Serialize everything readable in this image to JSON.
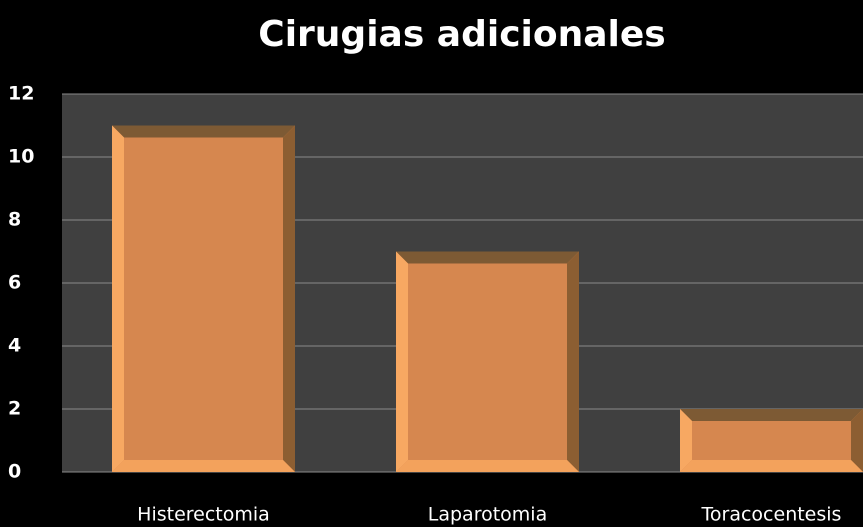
{
  "chart_data": {
    "type": "bar",
    "title": "Cirugias adicionales",
    "categories": [
      "Histerectomia",
      "Laparotomia",
      "Toracocentesis"
    ],
    "values": [
      11,
      7,
      2
    ],
    "color": "#d6874f",
    "ylim": [
      0,
      12
    ],
    "yticks": [
      0,
      2,
      4,
      6,
      8,
      10,
      12
    ],
    "grid": true
  }
}
